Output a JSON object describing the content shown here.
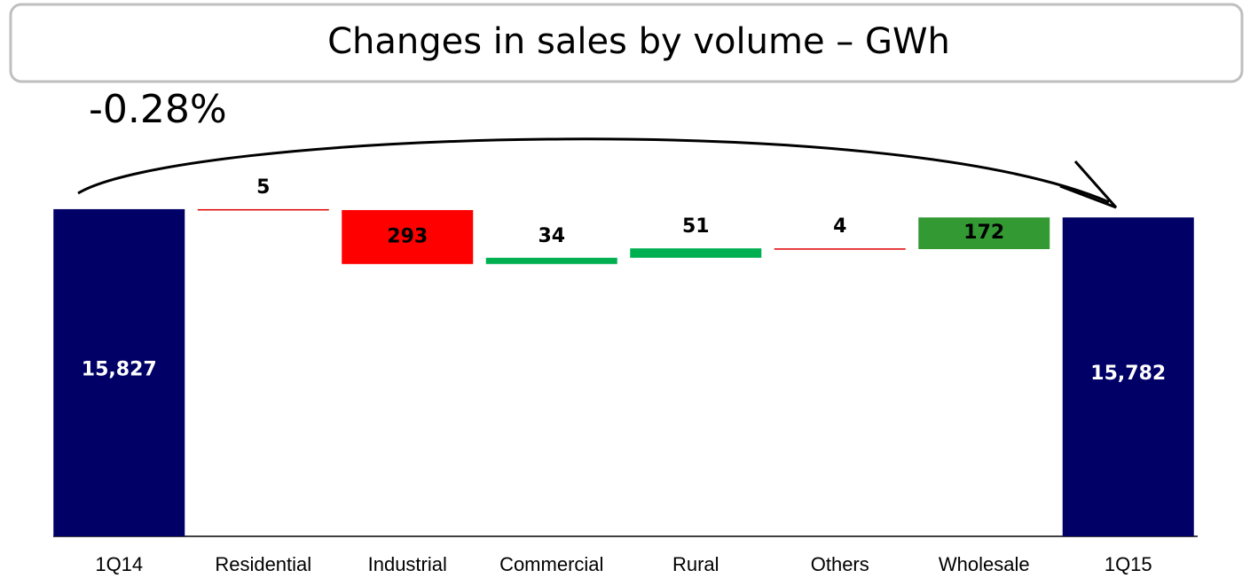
{
  "chart_data": {
    "type": "waterfall",
    "title": "Changes in sales by volume – GWh",
    "annotation": "-0.28%",
    "categories": [
      "1Q14",
      "Residential",
      "Industrial",
      "Commercial",
      "Rural",
      "Others",
      "Wholesale",
      "1Q15"
    ],
    "values": [
      15827,
      -5,
      -293,
      34,
      51,
      -4,
      172,
      15782
    ],
    "value_labels": [
      "15,827",
      "5",
      "293",
      "34",
      "51",
      "4",
      "172",
      "15,782"
    ],
    "colors": [
      "#000066",
      "#e00000",
      "#ff0000",
      "#00b050",
      "#00b050",
      "#e00000",
      "#339933",
      "#000066"
    ],
    "ylim": [
      14050,
      16000
    ]
  }
}
